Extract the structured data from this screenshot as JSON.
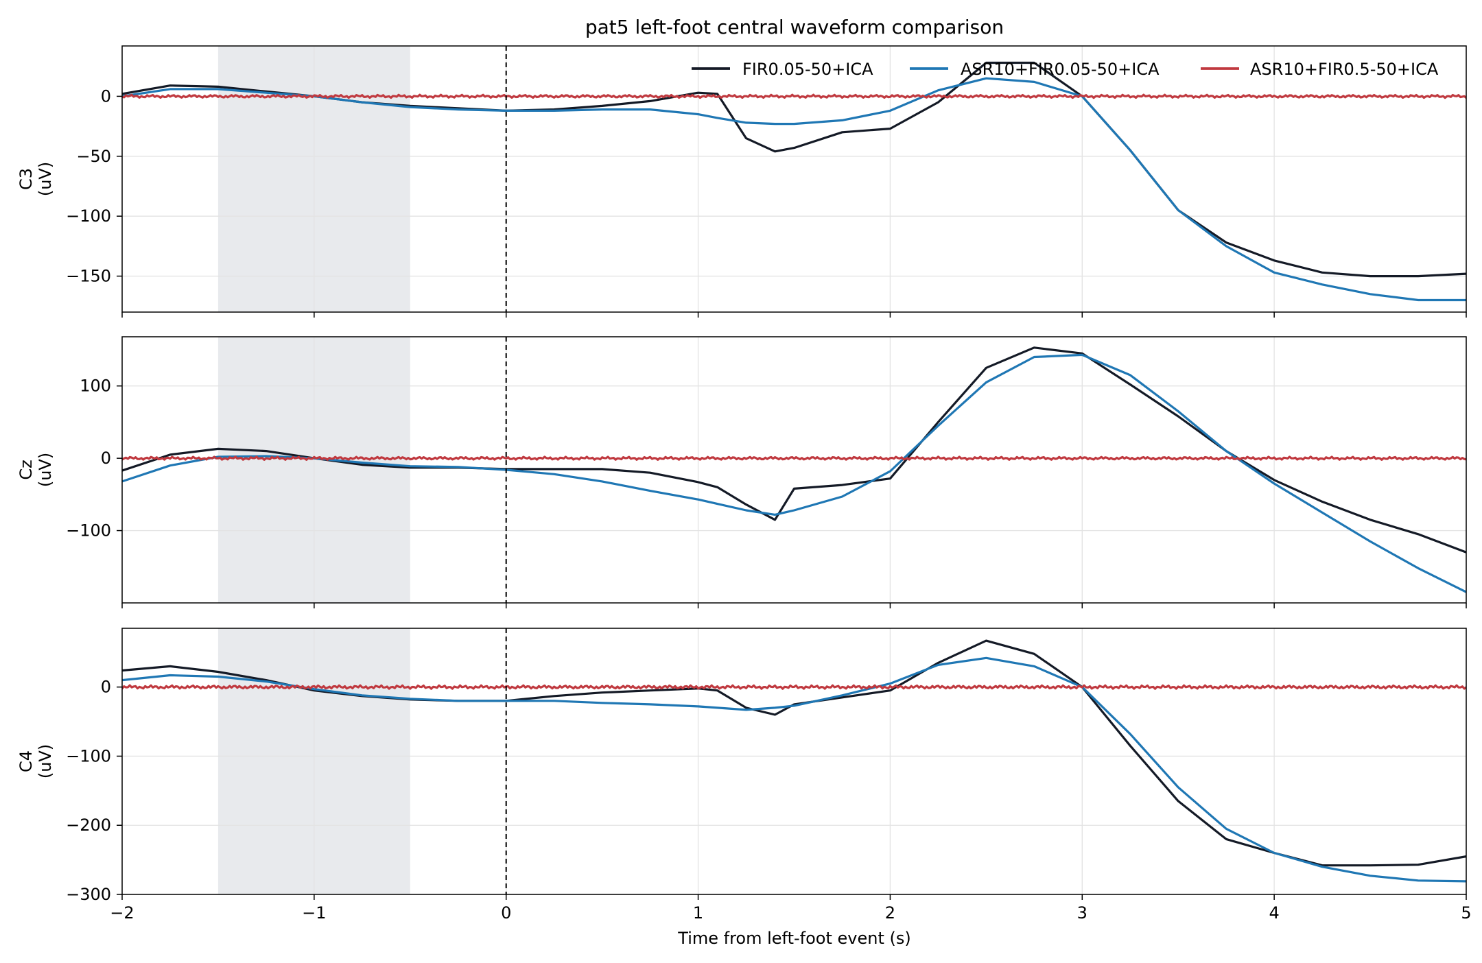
{
  "chart_data": {
    "type": "line",
    "title": "pat5 left-foot central waveform comparison",
    "xlabel": "Time from left-foot event (s)",
    "xlim": [
      -2,
      5
    ],
    "xticks": [
      -2,
      -1,
      0,
      1,
      2,
      3,
      4,
      5
    ],
    "xtick_labels": [
      "−2",
      "−1",
      "0",
      "1",
      "2",
      "3",
      "4",
      "5"
    ],
    "grid": true,
    "shaded_interval": [
      -1.5,
      -0.5
    ],
    "event_line_x": 0,
    "legend": {
      "placement": "top-right",
      "entries": [
        "FIR0.05-50+ICA",
        "ASR10+FIR0.05-50+ICA",
        "ASR10+FIR0.5-50+ICA"
      ]
    },
    "colors": {
      "FIR0.05-50+ICA": "#141a26",
      "ASR10+FIR0.05-50+ICA": "#1f77b4",
      "ASR10+FIR0.5-50+ICA": "#c0393f",
      "shade": "#e8eaed"
    },
    "x": [
      -2.0,
      -1.75,
      -1.5,
      -1.25,
      -1.0,
      -0.75,
      -0.5,
      -0.25,
      0.0,
      0.25,
      0.5,
      0.75,
      1.0,
      1.1,
      1.25,
      1.4,
      1.5,
      1.75,
      2.0,
      2.25,
      2.5,
      2.75,
      3.0,
      3.25,
      3.5,
      3.75,
      4.0,
      4.25,
      4.5,
      4.75,
      5.0
    ],
    "panels": [
      {
        "ylabel": "C3\n(uV)",
        "ylabel_lines": [
          "C3",
          "(uV)"
        ],
        "ylim": [
          -180,
          42
        ],
        "yticks": [
          0,
          -50,
          -100,
          -150
        ],
        "ytick_labels": [
          "0",
          "−50",
          "−100",
          "−150"
        ],
        "series": [
          {
            "name": "FIR0.05-50+ICA",
            "values": [
              2,
              9,
              8,
              4,
              0,
              -5,
              -8,
              -10,
              -12,
              -11,
              -8,
              -4,
              3,
              2,
              -35,
              -46,
              -43,
              -30,
              -27,
              -5,
              28,
              28,
              0,
              -45,
              -95,
              -122,
              -137,
              -147,
              -150,
              -150,
              -148
            ]
          },
          {
            "name": "ASR10+FIR0.05-50+ICA",
            "values": [
              0,
              6,
              6,
              3,
              0,
              -5,
              -9,
              -11,
              -12,
              -12,
              -11,
              -11,
              -15,
              -18,
              -22,
              -23,
              -23,
              -20,
              -12,
              5,
              15,
              12,
              0,
              -45,
              -95,
              -125,
              -147,
              -157,
              -165,
              -170,
              -170
            ]
          },
          {
            "name": "ASR10+FIR0.5-50+ICA",
            "values": [
              0,
              0,
              0,
              0,
              0,
              0,
              0,
              0,
              0,
              0,
              0,
              0,
              0,
              0,
              0,
              0,
              0,
              0,
              0,
              0,
              0,
              0,
              0,
              0,
              0,
              0,
              0,
              0,
              0,
              0,
              0
            ]
          }
        ]
      },
      {
        "ylabel": "Cz\n(uV)",
        "ylabel_lines": [
          "Cz",
          "(uV)"
        ],
        "ylim": [
          -200,
          168
        ],
        "yticks": [
          100,
          0,
          -100
        ],
        "ytick_labels": [
          "100",
          "0",
          "−100"
        ],
        "series": [
          {
            "name": "FIR0.05-50+ICA",
            "values": [
              -17,
              5,
              13,
              10,
              0,
              -9,
              -13,
              -13,
              -15,
              -15,
              -15,
              -20,
              -33,
              -40,
              -64,
              -85,
              -42,
              -37,
              -28,
              50,
              125,
              153,
              145,
              102,
              58,
              10,
              -30,
              -60,
              -85,
              -105,
              -130
            ]
          },
          {
            "name": "ASR10+FIR0.05-50+ICA",
            "values": [
              -32,
              -10,
              2,
              3,
              0,
              -6,
              -11,
              -12,
              -16,
              -22,
              -32,
              -45,
              -57,
              -63,
              -72,
              -78,
              -72,
              -53,
              -18,
              45,
              105,
              140,
              143,
              115,
              65,
              10,
              -35,
              -75,
              -115,
              -152,
              -185
            ]
          },
          {
            "name": "ASR10+FIR0.5-50+ICA",
            "values": [
              0,
              0,
              0,
              0,
              0,
              0,
              0,
              0,
              0,
              0,
              0,
              0,
              0,
              0,
              0,
              0,
              0,
              0,
              0,
              0,
              0,
              0,
              0,
              0,
              0,
              0,
              0,
              0,
              0,
              0,
              0
            ]
          }
        ]
      },
      {
        "ylabel": "C4\n(uV)",
        "ylabel_lines": [
          "C4",
          "(uV)"
        ],
        "ylim": [
          -300,
          85
        ],
        "yticks": [
          0,
          -100,
          -200,
          -300
        ],
        "ytick_labels": [
          "0",
          "−100",
          "−200",
          "−300"
        ],
        "series": [
          {
            "name": "FIR0.05-50+ICA",
            "values": [
              24,
              30,
              22,
              10,
              -5,
              -13,
              -18,
              -20,
              -20,
              -13,
              -8,
              -5,
              -2,
              -5,
              -30,
              -40,
              -25,
              -15,
              -5,
              35,
              67,
              48,
              0,
              -85,
              -165,
              -220,
              -240,
              -258,
              -258,
              -257,
              -245
            ]
          },
          {
            "name": "ASR10+FIR0.05-50+ICA",
            "values": [
              10,
              17,
              15,
              8,
              -3,
              -12,
              -17,
              -20,
              -20,
              -20,
              -23,
              -25,
              -28,
              -30,
              -33,
              -30,
              -27,
              -12,
              5,
              32,
              42,
              30,
              0,
              -68,
              -145,
              -205,
              -240,
              -260,
              -273,
              -280,
              -281
            ]
          },
          {
            "name": "ASR10+FIR0.5-50+ICA",
            "values": [
              0,
              0,
              0,
              0,
              0,
              0,
              0,
              0,
              0,
              0,
              0,
              0,
              0,
              0,
              0,
              0,
              0,
              0,
              0,
              0,
              0,
              0,
              0,
              0,
              0,
              0,
              0,
              0,
              0,
              0,
              0
            ]
          }
        ]
      }
    ]
  }
}
